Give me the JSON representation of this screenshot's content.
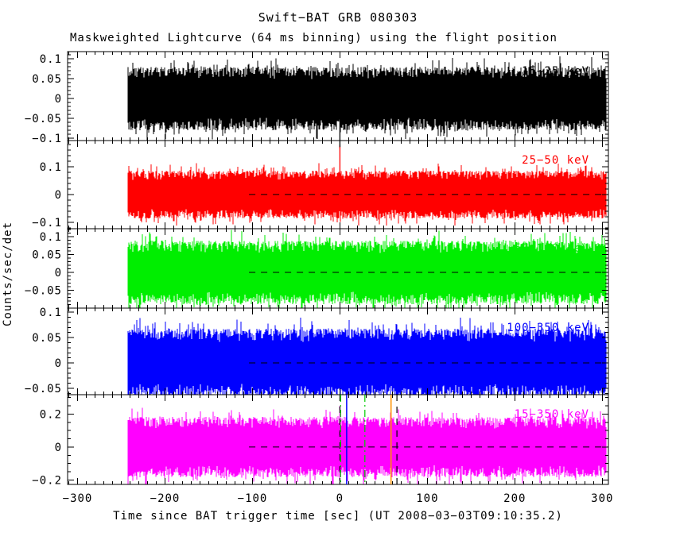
{
  "chart_data": {
    "type": "line",
    "title": "Swift−BAT GRB 080303",
    "subtitle": "Maskweighted Lightcurve (64 ms binning) using the flight position",
    "xlabel": "Time since BAT trigger time [sec] (UT 2008−03−03T09:10:35.2)",
    "ylabel": "Counts/sec/det",
    "binning": "64 ms",
    "grid": false,
    "xlim": [
      -311.4,
      307
    ],
    "x_minor_step": 10,
    "x_ticks": [
      {
        "value": -300,
        "label": "−300"
      },
      {
        "value": -200,
        "label": "−200"
      },
      {
        "value": -100,
        "label": "−100"
      },
      {
        "value": 0,
        "label": "0"
      },
      {
        "value": 100,
        "label": "100"
      },
      {
        "value": 200,
        "label": "200"
      },
      {
        "value": 300,
        "label": "300"
      }
    ],
    "data_t_range": [
      -243,
      305
    ],
    "zero_line": {
      "color": "#000000",
      "style": "dashed",
      "t_start": -104,
      "t_end": 307
    },
    "panels": [
      {
        "label": "15−25 keV",
        "color": "#000000",
        "ylim": [
          -0.106,
          0.118
        ],
        "y_minor": 0.01,
        "yticks": [
          {
            "value": 0.1,
            "label": "0.1"
          },
          {
            "value": 0.05,
            "label": "0.05"
          },
          {
            "value": 0,
            "label": "0"
          },
          {
            "value": -0.05,
            "label": "−0.05"
          },
          {
            "value": -0.1,
            "label": "−0.1"
          }
        ],
        "noise_amplitude": 0.08,
        "spike": {
          "t": 0,
          "peak": -0.125
        },
        "seed": 11
      },
      {
        "label": "25−50 keV",
        "color": "#ff0000",
        "ylim": [
          -0.123,
          0.194
        ],
        "y_minor": 0.02,
        "yticks": [
          {
            "value": 0.1,
            "label": "0.1"
          },
          {
            "value": 0,
            "label": "0"
          },
          {
            "value": -0.1,
            "label": "−0.1"
          }
        ],
        "noise_amplitude": 0.086,
        "spike": {
          "t": 0,
          "peak": 0.178
        },
        "seed": 22
      },
      {
        "label": "50−100 keV",
        "color": "#00ee00",
        "ylim": [
          -0.1,
          0.122
        ],
        "y_minor": 0.01,
        "yticks": [
          {
            "value": 0.1,
            "label": "0.1"
          },
          {
            "value": 0.05,
            "label": "0.05"
          },
          {
            "value": 0,
            "label": "0"
          },
          {
            "value": -0.05,
            "label": "−0.05"
          }
        ],
        "noise_amplitude": 0.089,
        "spike": null,
        "seed": 33
      },
      {
        "label": "100−350 keV",
        "color": "#0000ff",
        "ylim": [
          -0.0625,
          0.108
        ],
        "y_minor": 0.01,
        "yticks": [
          {
            "value": 0.1,
            "label": "0.1"
          },
          {
            "value": 0.05,
            "label": "0.05"
          },
          {
            "value": 0,
            "label": "0"
          },
          {
            "value": -0.05,
            "label": "−0.05"
          }
        ],
        "noise_amplitude": 0.068,
        "spike": null,
        "seed": 44
      },
      {
        "label": "15−350 keV",
        "color": "#ff00ff",
        "ylim": [
          -0.227,
          0.318
        ],
        "y_minor": 0.05,
        "yticks": [
          {
            "value": 0.2,
            "label": "0.2"
          },
          {
            "value": 0,
            "label": "0"
          },
          {
            "value": -0.2,
            "label": "−0.2"
          }
        ],
        "noise_amplitude": 0.183,
        "spike": {
          "t": 0,
          "peak": 0.25
        },
        "seed": 55
      }
    ],
    "markers_panel": 4,
    "markers": [
      {
        "t": 0,
        "color": "#000000",
        "style": "dashed"
      },
      {
        "t": 0.8,
        "color": "#00cc00",
        "style": "dashdot"
      },
      {
        "t": 7.7,
        "color": "#0000ff",
        "style": "solid"
      },
      {
        "t": 28.5,
        "color": "#00cc00",
        "style": "dashdot"
      },
      {
        "t": 58.5,
        "color": "#ff9200",
        "style": "solid"
      },
      {
        "t": 65.2,
        "color": "#000000",
        "style": "dashed"
      }
    ]
  }
}
